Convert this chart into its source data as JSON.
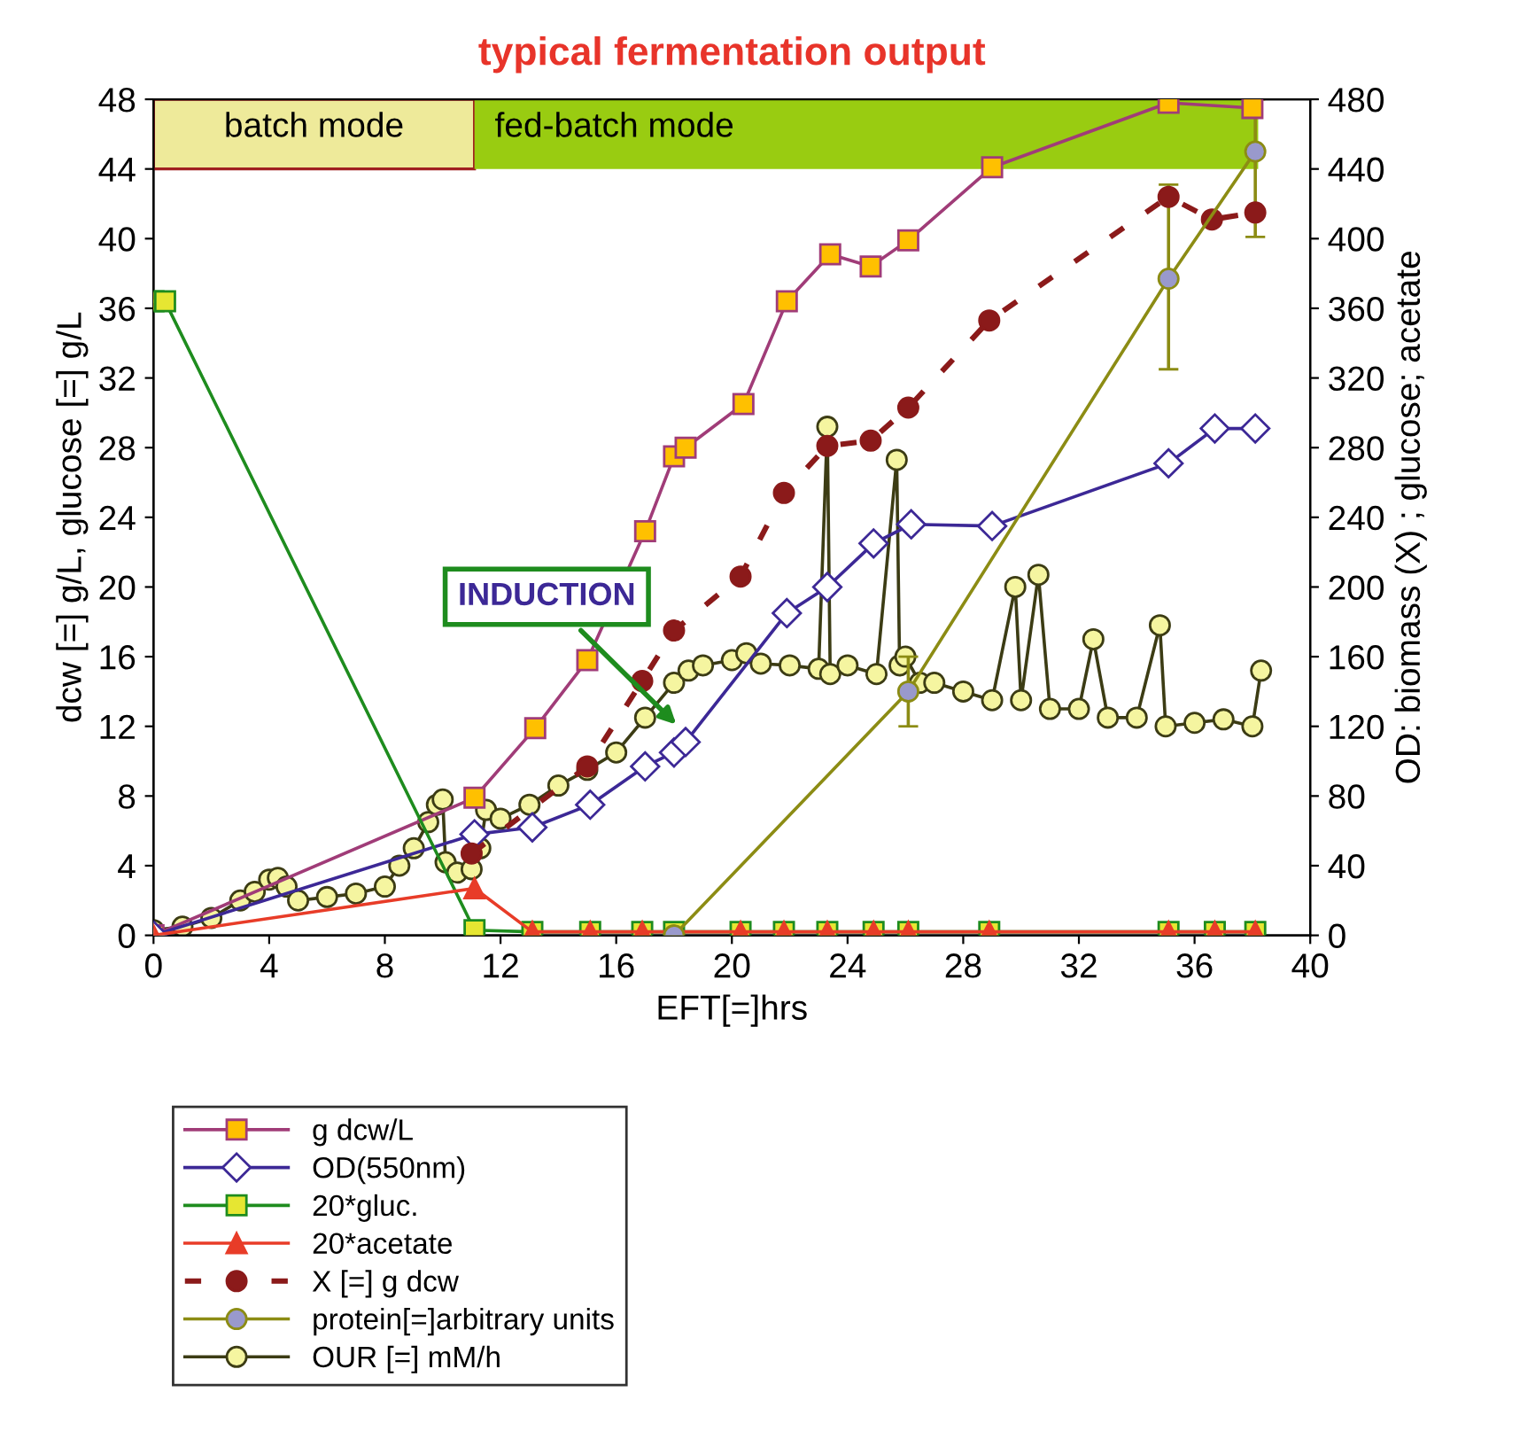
{
  "chart_data": {
    "type": "line",
    "title": "typical fermentation output",
    "xlabel": "EFT[=]hrs",
    "ylabel": "dcw [=] g/L, glucose [=] g/L",
    "y2label": "OD: biomass (X) ; glucose; acetate",
    "xlim": [
      0,
      40
    ],
    "xticks": [
      0,
      4,
      8,
      12,
      16,
      20,
      24,
      28,
      32,
      36,
      40
    ],
    "ylim": [
      0,
      48
    ],
    "yticks": [
      0,
      4,
      8,
      12,
      16,
      20,
      24,
      28,
      32,
      36,
      40,
      44,
      48
    ],
    "y2lim": [
      0,
      480
    ],
    "y2ticks": [
      0,
      40,
      80,
      120,
      160,
      200,
      240,
      280,
      320,
      360,
      400,
      440,
      480
    ],
    "grid": false,
    "legend": "bottom",
    "bands": [
      {
        "axis": "x",
        "from": 0,
        "to": 11.1,
        "label": "batch mode",
        "color": "#eeea9a"
      },
      {
        "axis": "x",
        "from": 11.1,
        "to": 38.2,
        "label": "fed-batch mode",
        "color": "#99cc11"
      }
    ],
    "annotations": [
      "INDUCTION"
    ],
    "series": [
      {
        "name": "g dcw/L",
        "color": "#a03c78",
        "marker": "square",
        "line_style": "solid",
        "x": [
          0,
          11.1,
          13.2,
          15.0,
          17.0,
          18.0,
          18.4,
          20.4,
          21.9,
          23.4,
          24.8,
          26.1,
          29.0,
          35.1,
          38.0
        ],
        "values": [
          0,
          7.9,
          11.9,
          15.8,
          23.2,
          27.5,
          28.0,
          30.5,
          36.4,
          39.1,
          38.4,
          39.9,
          44.1,
          47.8,
          47.5
        ]
      },
      {
        "name": "OD(550nm)",
        "color": "#3c2896",
        "marker": "diamond",
        "line_style": "solid",
        "x": [
          0,
          11.1,
          13.1,
          15.1,
          17.0,
          18.0,
          18.4,
          21.9,
          23.3,
          24.9,
          26.2,
          29.0,
          35.1,
          36.7,
          38.1
        ],
        "values": [
          0,
          5.8,
          6.2,
          7.5,
          9.7,
          10.5,
          11.1,
          18.5,
          20.0,
          22.5,
          23.6,
          23.5,
          27.1,
          29.1,
          29.1
        ]
      },
      {
        "name": "20*gluc.",
        "color": "#1e8c1e",
        "marker": "square",
        "line_style": "solid",
        "x": [
          0,
          0.4,
          11.1,
          13.1,
          15.1,
          16.9,
          18.0,
          20.3,
          21.8,
          23.3,
          24.9,
          26.1,
          28.9,
          35.1,
          36.7,
          38.1
        ],
        "values": [
          36.4,
          36.4,
          0.3,
          0.2,
          0.2,
          0.2,
          0.2,
          0.2,
          0.2,
          0.2,
          0.2,
          0.2,
          0.2,
          0.2,
          0.2,
          0.2
        ]
      },
      {
        "name": "20*acetate",
        "color": "#e83c28",
        "marker": "triangle",
        "line_style": "solid",
        "x": [
          0,
          11.1,
          13.1,
          15.1,
          16.9,
          20.3,
          21.8,
          23.3,
          24.9,
          26.1,
          28.9,
          35.1,
          36.7,
          38.1
        ],
        "values": [
          0,
          2.7,
          0.2,
          0.2,
          0.2,
          0.2,
          0.2,
          0.2,
          0.2,
          0.2,
          0.2,
          0.2,
          0.2,
          0.2
        ]
      },
      {
        "name": "X [=] g dcw",
        "color": "#8b1a1a",
        "marker": "circle",
        "line_style": "dashed",
        "x": [
          11.0,
          15.0,
          16.9,
          18.0,
          20.3,
          21.8,
          23.3,
          24.8,
          26.1,
          28.9,
          35.1,
          36.6,
          38.1
        ],
        "values": [
          4.7,
          9.7,
          14.6,
          17.5,
          20.6,
          25.4,
          28.1,
          28.4,
          30.3,
          35.3,
          42.4,
          41.1,
          41.5
        ]
      },
      {
        "name": "protein[=]arbitrary units",
        "color": "#8c8c14",
        "marker": "circle",
        "line_style": "solid",
        "x": [
          18.0,
          26.1,
          35.1,
          38.1
        ],
        "values": [
          0,
          14.0,
          37.7,
          45.0
        ],
        "errors": [
          null,
          [
            12.0,
            16.0
          ],
          [
            32.5,
            43.1
          ],
          [
            40.1,
            48
          ]
        ]
      },
      {
        "name": "OUR [=] mM/h",
        "color": "#3c3c14",
        "marker": "circle",
        "line_style": "solid",
        "axis": "y2",
        "x": [
          0,
          1,
          2,
          3,
          3.5,
          4,
          4.3,
          4.6,
          5,
          6,
          7,
          8,
          8.5,
          9,
          9.5,
          9.8,
          10,
          10.1,
          10.5,
          11,
          11.3,
          11.5,
          12,
          13,
          14,
          15,
          16,
          17,
          18,
          18.5,
          19,
          20,
          20.5,
          21,
          22,
          23,
          23.3,
          23.4,
          24,
          25,
          25.7,
          25.8,
          26,
          26.5,
          27,
          28,
          29,
          29.8,
          30,
          30.6,
          31,
          32,
          32.5,
          33,
          34,
          34.8,
          35,
          36,
          37,
          38,
          38.3
        ],
        "values": [
          3,
          5,
          10,
          20,
          25,
          32,
          33,
          28,
          20,
          22,
          24,
          28,
          40,
          50,
          65,
          75,
          78,
          42,
          36,
          38,
          50,
          72,
          67,
          75,
          86,
          95,
          105,
          125,
          145,
          152,
          155,
          158,
          162,
          156,
          155,
          153,
          292,
          150,
          155,
          150,
          273,
          155,
          160,
          145,
          145,
          140,
          135,
          200,
          135,
          207,
          130,
          130,
          170,
          125,
          125,
          178,
          120,
          122,
          124,
          120,
          152
        ]
      }
    ]
  }
}
